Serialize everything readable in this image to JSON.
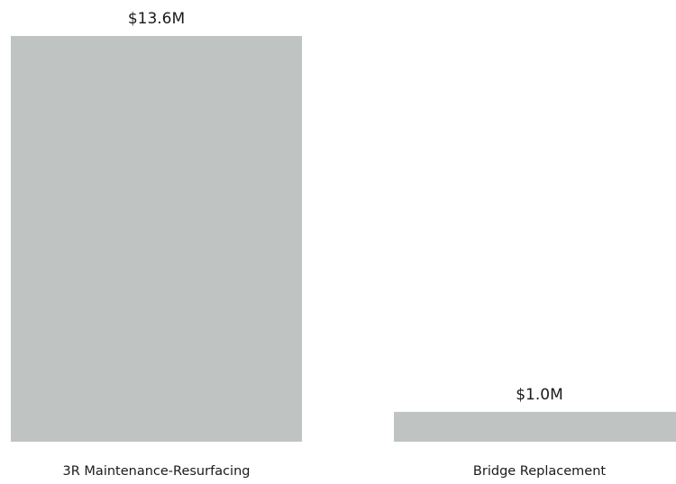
{
  "chart_data": {
    "type": "bar",
    "categories": [
      "3R Maintenance-Resurfacing",
      "Bridge Replacement"
    ],
    "values": [
      13.6,
      1.0
    ],
    "value_labels": [
      "$13.6M",
      "$1.0M"
    ],
    "bar_color": "#bfc4c3",
    "grid": false,
    "legend": "none"
  }
}
